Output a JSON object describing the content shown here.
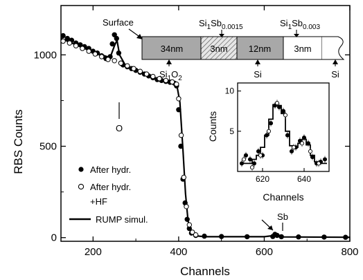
{
  "chart_data": [
    {
      "type": "scatter",
      "xlabel": "Channels",
      "ylabel": "RBS Counts",
      "xlim": [
        125,
        800
      ],
      "ylim": [
        -20,
        1270
      ],
      "x_ticks": [
        "200",
        "400",
        "600",
        "800"
      ],
      "y_ticks": [
        "0",
        "500",
        "1000"
      ],
      "legend": {
        "placement": "bottom-left",
        "entries": [
          {
            "marker": "filled-circle",
            "lines": [
              "After hydr."
            ]
          },
          {
            "marker": "open-circle",
            "lines": [
              "After hydr.",
              "+HF"
            ]
          },
          {
            "marker": "line",
            "lines": [
              "RUMP simul."
            ]
          }
        ]
      },
      "annotations": {
        "oxygen": "O",
        "antimony": "Sb"
      },
      "series": [
        {
          "name": "After hydr.",
          "marker": "filled-circle",
          "x": [
            130,
            140,
            150,
            160,
            170,
            180,
            190,
            200,
            210,
            220,
            230,
            240,
            245,
            250,
            255,
            260,
            265,
            270,
            280,
            290,
            300,
            310,
            320,
            330,
            340,
            350,
            360,
            370,
            380,
            390,
            395,
            400,
            405,
            410,
            415,
            420,
            425,
            430,
            440,
            460,
            500,
            560,
            620,
            625,
            630,
            640,
            680,
            740,
            790
          ],
          "y": [
            1105,
            1090,
            1080,
            1065,
            1055,
            1045,
            1035,
            1020,
            1010,
            995,
            980,
            990,
            1060,
            1110,
            1090,
            1010,
            955,
            945,
            935,
            925,
            915,
            905,
            895,
            885,
            875,
            865,
            860,
            855,
            850,
            845,
            830,
            700,
            500,
            320,
            190,
            100,
            50,
            25,
            12,
            8,
            6,
            5,
            6,
            18,
            12,
            5,
            4,
            3,
            2
          ]
        },
        {
          "name": "After hydr. +HF",
          "marker": "open-circle",
          "x": [
            130,
            145,
            160,
            175,
            190,
            205,
            220,
            235,
            250,
            265,
            280,
            295,
            310,
            325,
            340,
            355,
            370,
            385,
            395,
            400,
            406,
            412,
            418,
            425,
            432,
            440
          ],
          "y": [
            1075,
            1065,
            1050,
            1035,
            1020,
            1005,
            990,
            975,
            968,
            955,
            940,
            925,
            910,
            895,
            882,
            870,
            860,
            852,
            840,
            760,
            560,
            330,
            170,
            70,
            30,
            15
          ]
        },
        {
          "name": "RUMP simul.",
          "marker": "line",
          "x": [
            125,
            200,
            240,
            250,
            256,
            262,
            275,
            350,
            395,
            403,
            410,
            416,
            422,
            430,
            440,
            460,
            600,
            625,
            630,
            640,
            800
          ],
          "y": [
            1090,
            1015,
            985,
            1050,
            1080,
            1000,
            945,
            870,
            845,
            740,
            480,
            240,
            90,
            30,
            10,
            5,
            5,
            12,
            8,
            4,
            2
          ]
        }
      ]
    },
    {
      "type": "line",
      "xlabel": "Channels",
      "ylabel": "Counts",
      "xlim": [
        608,
        652
      ],
      "ylim": [
        0,
        11
      ],
      "x_ticks": [
        "620",
        "640"
      ],
      "y_ticks": [
        "5",
        "10"
      ],
      "series": [
        {
          "marker": "filled-circle",
          "x": [
            610,
            612,
            614,
            616,
            618,
            620,
            622,
            624,
            626,
            628,
            630,
            632,
            634,
            636,
            638,
            640,
            642,
            644,
            646,
            648,
            650
          ],
          "y": [
            1,
            2,
            1.5,
            1,
            2.5,
            2,
            4.5,
            6,
            8.2,
            8,
            7.5,
            4.5,
            2.5,
            3,
            3.8,
            4.2,
            3.5,
            1.8,
            1,
            1.2,
            1.5
          ]
        },
        {
          "marker": "open-circle",
          "x": [
            611,
            615,
            619,
            623,
            627,
            631,
            635,
            639,
            643,
            647
          ],
          "y": [
            1.5,
            0.5,
            2,
            5,
            8.5,
            7,
            3,
            3.5,
            2.5,
            1
          ]
        },
        {
          "marker": "step-line",
          "x": [
            610,
            612,
            614,
            616,
            618,
            620,
            622,
            624,
            626,
            628,
            630,
            632,
            634,
            636,
            638,
            640,
            642,
            644,
            646,
            648,
            650
          ],
          "y": [
            1,
            1,
            1,
            1.5,
            2,
            3,
            4.5,
            6.5,
            8.3,
            8.2,
            7.2,
            5,
            3.2,
            3,
            3.5,
            4,
            3.3,
            2,
            1.2,
            1,
            1
          ]
        }
      ]
    }
  ],
  "layers": {
    "header": "Surface",
    "top_labels": [
      {
        "main": "Si",
        "s1": "1",
        "mid": "Sb",
        "s2": "0.0015"
      },
      {
        "main": "Si",
        "s1": "1",
        "mid": "Sb",
        "s2": "0.003"
      }
    ],
    "bottom_labels": [
      {
        "main": "Si",
        "s1": "1",
        "mid": "O",
        "s2": "2"
      },
      {
        "main": "Si",
        "s1": "",
        "mid": "",
        "s2": ""
      },
      {
        "main": "Si",
        "s1": "",
        "mid": "",
        "s2": ""
      }
    ],
    "segments": [
      {
        "label": "34nm",
        "fill": "#a8a8a8"
      },
      {
        "label": "3nm",
        "fill": "hatch"
      },
      {
        "label": "12nm",
        "fill": "#a8a8a8"
      },
      {
        "label": "3nm",
        "fill": "#ffffff"
      }
    ]
  }
}
